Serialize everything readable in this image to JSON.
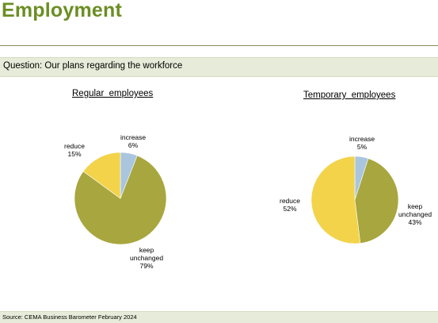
{
  "page": {
    "title": "Employment",
    "question": "Question: Our plans regarding the workforce",
    "footer": "Source: CEMA Business Barometer February 2024"
  },
  "colors": {
    "increase": "#a9c6de",
    "keep unchanged": "#a8a63e",
    "reduce": "#f2d34a",
    "title": "#6b8e23",
    "bar": "#e6ecd9"
  },
  "chart_data": [
    {
      "type": "pie",
      "title": "Regular  employees",
      "slices": [
        {
          "label": "increase",
          "value": 6,
          "text": "6%"
        },
        {
          "label": "keep unchanged",
          "value": 79,
          "text": "79%"
        },
        {
          "label": "reduce",
          "value": 15,
          "text": "15%"
        }
      ]
    },
    {
      "type": "pie",
      "title": "Temporary  employees",
      "slices": [
        {
          "label": "increase",
          "value": 5,
          "text": "5%"
        },
        {
          "label": "keep unchanged",
          "value": 43,
          "text": "43%"
        },
        {
          "label": "reduce",
          "value": 52,
          "text": "52%"
        }
      ]
    }
  ]
}
